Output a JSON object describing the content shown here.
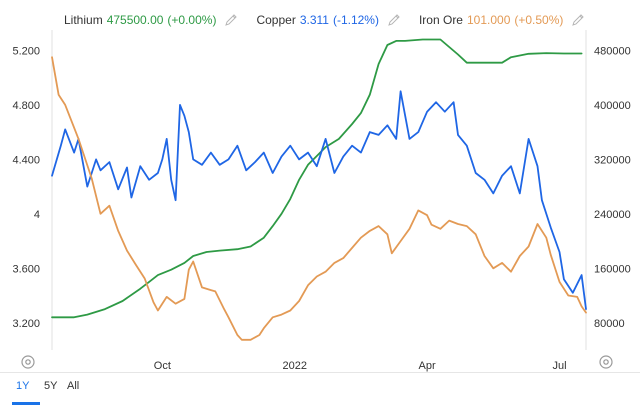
{
  "legend": [
    {
      "name": "Lithium",
      "value": "475500.00",
      "change": "(+0.00%)",
      "color": "#2e9a45"
    },
    {
      "name": "Copper",
      "value": "3.311",
      "change": "(-1.12%)",
      "color": "#1f66e5"
    },
    {
      "name": "Iron Ore",
      "value": "101.000",
      "change": "(+0.50%)",
      "color": "#e39a55"
    }
  ],
  "tabs": [
    {
      "label": "1Y",
      "active": true
    },
    {
      "label": "5Y",
      "active": false
    },
    {
      "label": "All",
      "active": false
    }
  ],
  "chart_data": {
    "type": "line",
    "title": "",
    "xlabel": "",
    "ylabel": "",
    "x_tick_labels": [
      "Oct",
      "2022",
      "Apr",
      "Jul"
    ],
    "x_tick_months": [
      2.5,
      5.5,
      8.5,
      11.5
    ],
    "x_range": [
      0,
      12.1
    ],
    "y_left_ticks": [
      "5.200",
      "4.800",
      "4.400",
      "4",
      "3.600",
      "3.200"
    ],
    "y_left_range": [
      3.0,
      5.35
    ],
    "y_right_ticks": [
      "480000",
      "400000",
      "320000",
      "240000",
      "160000",
      "80000"
    ],
    "y_right_range": [
      40000,
      510000
    ],
    "grid": false,
    "legend_position": "top",
    "series": [
      {
        "name": "Lithium",
        "axis": "right",
        "color": "#2e9a45",
        "points": [
          [
            0.0,
            88000
          ],
          [
            0.5,
            88000
          ],
          [
            0.8,
            92000
          ],
          [
            1.2,
            100000
          ],
          [
            1.6,
            112000
          ],
          [
            2.0,
            130000
          ],
          [
            2.2,
            140000
          ],
          [
            2.4,
            150000
          ],
          [
            2.7,
            158000
          ],
          [
            3.0,
            168000
          ],
          [
            3.2,
            178000
          ],
          [
            3.5,
            184000
          ],
          [
            3.8,
            186000
          ],
          [
            4.2,
            188000
          ],
          [
            4.5,
            192000
          ],
          [
            4.8,
            205000
          ],
          [
            5.0,
            222000
          ],
          [
            5.2,
            240000
          ],
          [
            5.4,
            262000
          ],
          [
            5.6,
            290000
          ],
          [
            5.8,
            312000
          ],
          [
            6.0,
            325000
          ],
          [
            6.2,
            338000
          ],
          [
            6.5,
            350000
          ],
          [
            6.8,
            372000
          ],
          [
            7.0,
            388000
          ],
          [
            7.2,
            415000
          ],
          [
            7.4,
            460000
          ],
          [
            7.6,
            488000
          ],
          [
            7.8,
            494000
          ],
          [
            8.0,
            494000
          ],
          [
            8.4,
            496000
          ],
          [
            8.8,
            496000
          ],
          [
            9.0,
            485000
          ],
          [
            9.2,
            474000
          ],
          [
            9.4,
            462000
          ],
          [
            9.8,
            462000
          ],
          [
            10.2,
            462000
          ],
          [
            10.4,
            470000
          ],
          [
            10.8,
            475000
          ],
          [
            11.2,
            476000
          ],
          [
            11.6,
            475500
          ],
          [
            12.0,
            475500
          ]
        ]
      },
      {
        "name": "Copper",
        "axis": "left",
        "color": "#1f66e5",
        "points": [
          [
            0.0,
            4.28
          ],
          [
            0.2,
            4.5
          ],
          [
            0.3,
            4.62
          ],
          [
            0.5,
            4.45
          ],
          [
            0.6,
            4.55
          ],
          [
            0.8,
            4.2
          ],
          [
            1.0,
            4.4
          ],
          [
            1.1,
            4.32
          ],
          [
            1.3,
            4.38
          ],
          [
            1.5,
            4.18
          ],
          [
            1.7,
            4.34
          ],
          [
            1.8,
            4.12
          ],
          [
            2.0,
            4.35
          ],
          [
            2.2,
            4.25
          ],
          [
            2.4,
            4.3
          ],
          [
            2.5,
            4.4
          ],
          [
            2.6,
            4.55
          ],
          [
            2.7,
            4.25
          ],
          [
            2.8,
            4.1
          ],
          [
            2.9,
            4.8
          ],
          [
            3.0,
            4.72
          ],
          [
            3.1,
            4.6
          ],
          [
            3.2,
            4.4
          ],
          [
            3.4,
            4.36
          ],
          [
            3.6,
            4.45
          ],
          [
            3.8,
            4.36
          ],
          [
            4.0,
            4.4
          ],
          [
            4.2,
            4.5
          ],
          [
            4.4,
            4.32
          ],
          [
            4.6,
            4.38
          ],
          [
            4.8,
            4.45
          ],
          [
            5.0,
            4.3
          ],
          [
            5.2,
            4.42
          ],
          [
            5.4,
            4.5
          ],
          [
            5.6,
            4.4
          ],
          [
            5.8,
            4.45
          ],
          [
            6.0,
            4.35
          ],
          [
            6.2,
            4.55
          ],
          [
            6.4,
            4.3
          ],
          [
            6.6,
            4.42
          ],
          [
            6.8,
            4.5
          ],
          [
            7.0,
            4.45
          ],
          [
            7.2,
            4.6
          ],
          [
            7.4,
            4.58
          ],
          [
            7.6,
            4.65
          ],
          [
            7.8,
            4.55
          ],
          [
            7.9,
            4.9
          ],
          [
            8.1,
            4.55
          ],
          [
            8.3,
            4.6
          ],
          [
            8.5,
            4.75
          ],
          [
            8.7,
            4.82
          ],
          [
            8.9,
            4.75
          ],
          [
            9.1,
            4.82
          ],
          [
            9.2,
            4.58
          ],
          [
            9.4,
            4.5
          ],
          [
            9.6,
            4.3
          ],
          [
            9.8,
            4.25
          ],
          [
            10.0,
            4.15
          ],
          [
            10.2,
            4.28
          ],
          [
            10.4,
            4.35
          ],
          [
            10.6,
            4.15
          ],
          [
            10.8,
            4.55
          ],
          [
            11.0,
            4.35
          ],
          [
            11.1,
            4.1
          ],
          [
            11.3,
            3.9
          ],
          [
            11.5,
            3.72
          ],
          [
            11.6,
            3.52
          ],
          [
            11.8,
            3.42
          ],
          [
            12.0,
            3.55
          ],
          [
            12.1,
            3.3
          ]
        ]
      },
      {
        "name": "Iron Ore",
        "axis": "right",
        "color": "#e39a55",
        "points": [
          [
            0.0,
            470000
          ],
          [
            0.15,
            415000
          ],
          [
            0.3,
            400000
          ],
          [
            0.6,
            350000
          ],
          [
            0.9,
            292000
          ],
          [
            1.1,
            240000
          ],
          [
            1.3,
            252000
          ],
          [
            1.5,
            215000
          ],
          [
            1.7,
            186000
          ],
          [
            1.9,
            165000
          ],
          [
            2.1,
            145000
          ],
          [
            2.3,
            110000
          ],
          [
            2.4,
            98000
          ],
          [
            2.6,
            118000
          ],
          [
            2.8,
            108000
          ],
          [
            3.0,
            115000
          ],
          [
            3.1,
            158000
          ],
          [
            3.2,
            170000
          ],
          [
            3.4,
            132000
          ],
          [
            3.6,
            128000
          ],
          [
            3.7,
            126000
          ],
          [
            3.9,
            100000
          ],
          [
            4.0,
            88000
          ],
          [
            4.2,
            62000
          ],
          [
            4.3,
            55000
          ],
          [
            4.5,
            55000
          ],
          [
            4.7,
            62000
          ],
          [
            4.8,
            72000
          ],
          [
            5.0,
            88000
          ],
          [
            5.2,
            92000
          ],
          [
            5.4,
            98000
          ],
          [
            5.6,
            112000
          ],
          [
            5.8,
            135000
          ],
          [
            6.0,
            148000
          ],
          [
            6.2,
            155000
          ],
          [
            6.4,
            168000
          ],
          [
            6.6,
            175000
          ],
          [
            6.8,
            190000
          ],
          [
            7.0,
            205000
          ],
          [
            7.2,
            215000
          ],
          [
            7.4,
            222000
          ],
          [
            7.6,
            210000
          ],
          [
            7.7,
            182000
          ],
          [
            7.9,
            200000
          ],
          [
            8.1,
            218000
          ],
          [
            8.3,
            245000
          ],
          [
            8.5,
            238000
          ],
          [
            8.6,
            224000
          ],
          [
            8.8,
            218000
          ],
          [
            9.0,
            230000
          ],
          [
            9.2,
            225000
          ],
          [
            9.4,
            222000
          ],
          [
            9.6,
            210000
          ],
          [
            9.8,
            178000
          ],
          [
            10.0,
            160000
          ],
          [
            10.2,
            168000
          ],
          [
            10.4,
            155000
          ],
          [
            10.6,
            178000
          ],
          [
            10.8,
            192000
          ],
          [
            11.0,
            225000
          ],
          [
            11.2,
            205000
          ],
          [
            11.3,
            180000
          ],
          [
            11.5,
            140000
          ],
          [
            11.7,
            120000
          ],
          [
            11.9,
            118000
          ],
          [
            12.0,
            104000
          ],
          [
            12.1,
            95000
          ]
        ]
      }
    ]
  }
}
